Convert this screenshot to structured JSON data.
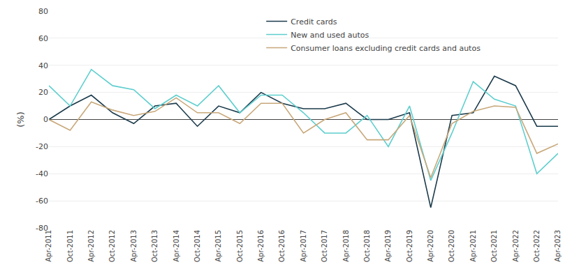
{
  "chart_data": {
    "type": "line",
    "categories": [
      "Apr-2011",
      "Oct-2011",
      "Apr-2012",
      "Oct-2012",
      "Apr-2013",
      "Oct-2013",
      "Apr-2014",
      "Oct-2014",
      "Apr-2015",
      "Oct-2015",
      "Apr-2016",
      "Oct-2016",
      "Apr-2017",
      "Oct-2017",
      "Apr-2018",
      "Oct-2018",
      "Apr-2019",
      "Oct-2019",
      "Apr-2020",
      "Oct-2020",
      "Apr-2021",
      "Oct-2021",
      "Apr-2022",
      "Oct-2022",
      "Apr-2023"
    ],
    "series": [
      {
        "name": "Credit cards",
        "color": "#1b3a4b",
        "values": [
          0,
          10,
          18,
          5,
          -3,
          10,
          12,
          -5,
          10,
          5,
          20,
          12,
          8,
          8,
          12,
          0,
          0,
          5,
          -65,
          3,
          5,
          32,
          25,
          -5,
          -5
        ]
      },
      {
        "name": "New and used autos",
        "color": "#5ecece",
        "values": [
          25,
          10,
          37,
          25,
          22,
          8,
          18,
          10,
          25,
          5,
          18,
          18,
          5,
          -10,
          -10,
          3,
          -20,
          10,
          -45,
          -10,
          28,
          15,
          10,
          -40,
          -25
        ]
      },
      {
        "name": "Consumer loans excluding credit cards and autos",
        "color": "#c8a87a",
        "values": [
          0,
          -8,
          13,
          7,
          3,
          6,
          16,
          5,
          5,
          -3,
          12,
          12,
          -10,
          0,
          5,
          -15,
          -15,
          3,
          -43,
          -3,
          6,
          10,
          9,
          -25,
          -18
        ]
      }
    ],
    "ylabel": "(%)",
    "ylim": [
      -80,
      80
    ],
    "yticks": [
      -80,
      -60,
      -40,
      -20,
      0,
      20,
      40,
      60,
      80
    ],
    "grid": true,
    "legend": "upper center"
  }
}
